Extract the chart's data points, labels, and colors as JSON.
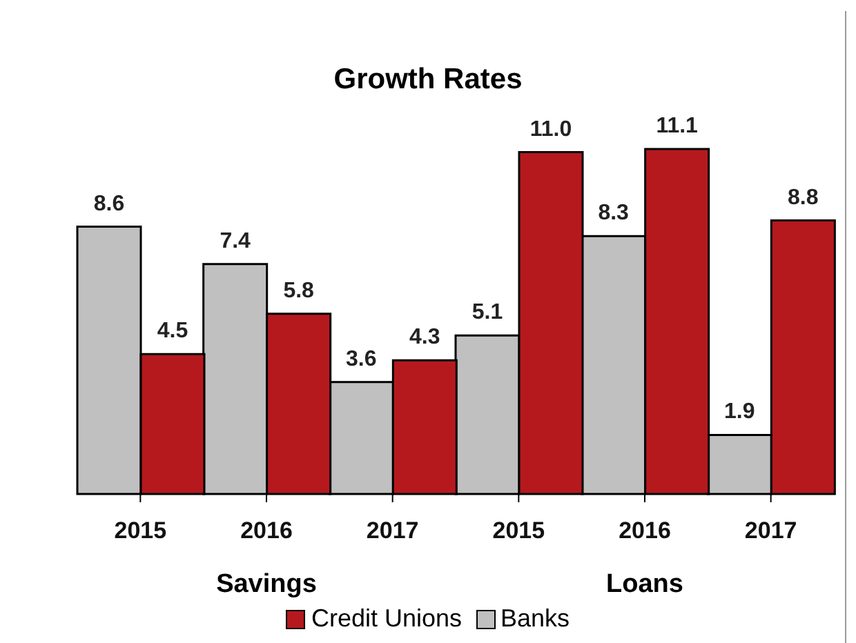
{
  "chart_data": {
    "type": "bar",
    "title": "Growth Rates",
    "categories": [
      "2015",
      "2016",
      "2017",
      "2015",
      "2016",
      "2017"
    ],
    "series": [
      {
        "name": "Credit Unions",
        "color": "#b5191e",
        "values": [
          4.5,
          5.8,
          4.3,
          11.0,
          11.1,
          8.8
        ],
        "value_labels": [
          "4.5",
          "5.8",
          "4.3",
          "11.0",
          "11.1",
          "8.8"
        ]
      },
      {
        "name": "Banks",
        "color": "#c0c0c0",
        "values": [
          8.6,
          7.4,
          3.6,
          5.1,
          8.3,
          1.9
        ],
        "value_labels": [
          "8.6",
          "7.4",
          "3.6",
          "5.1",
          "8.3",
          "1.9"
        ]
      }
    ],
    "annotations": [
      "Savings",
      "Loans"
    ],
    "legend": "bottom"
  }
}
